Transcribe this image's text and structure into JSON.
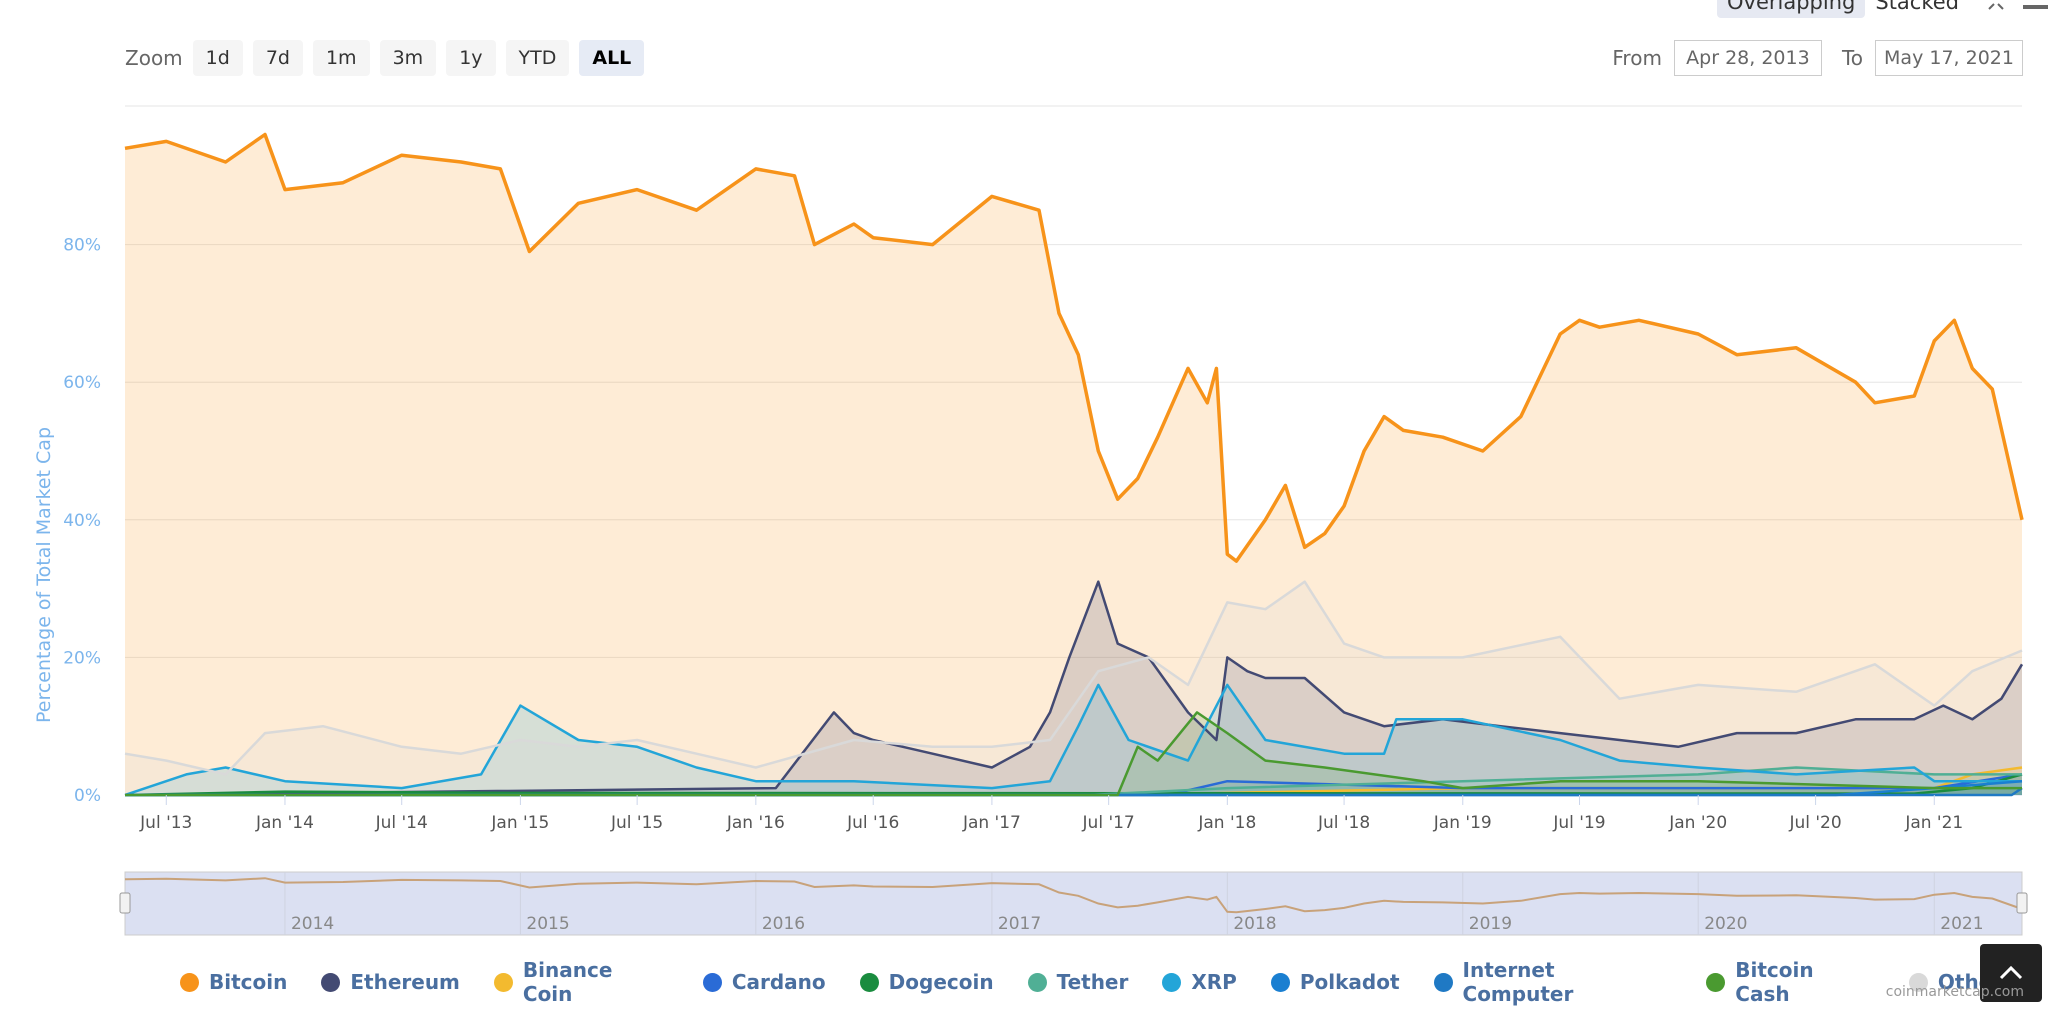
{
  "toolbar": {
    "mode_overlapping": "Overlapping",
    "mode_stacked": "Stacked",
    "zoom_label": "Zoom",
    "zoom_buttons": [
      "1d",
      "7d",
      "1m",
      "3m",
      "1y",
      "YTD",
      "ALL"
    ],
    "zoom_active": "ALL",
    "from_label": "From",
    "from_value": "Apr 28, 2013",
    "to_label": "To",
    "to_value": "May 17, 2021"
  },
  "credit": "coinmarketcap.com",
  "chart_data": {
    "type": "area",
    "ylabel": "Percentage of Total Market Cap",
    "y_ticks": [
      "0%",
      "20%",
      "40%",
      "60%",
      "80%"
    ],
    "ylim": [
      0,
      100
    ],
    "x_ticks": [
      "Jul '13",
      "Jan '14",
      "Jul '14",
      "Jan '15",
      "Jul '15",
      "Jan '16",
      "Jul '16",
      "Jan '17",
      "Jul '17",
      "Jan '18",
      "Jul '18",
      "Jan '19",
      "Jul '19",
      "Jan '20",
      "Jul '20",
      "Jan '21"
    ],
    "xlim": [
      "2013-04-28",
      "2021-05-17"
    ],
    "navigator_labels": [
      "2014",
      "2015",
      "2016",
      "2017",
      "2018",
      "2019",
      "2020",
      "2021"
    ],
    "grid": true,
    "legend_position": "bottom",
    "series": [
      {
        "name": "Bitcoin",
        "color": "#f7931a",
        "x": [
          "2013-04-28",
          "2013-07-01",
          "2013-10-01",
          "2013-12-01",
          "2014-01-01",
          "2014-04-01",
          "2014-07-01",
          "2014-10-01",
          "2014-12-01",
          "2015-01-15",
          "2015-04-01",
          "2015-07-01",
          "2015-10-01",
          "2016-01-01",
          "2016-03-01",
          "2016-04-01",
          "2016-06-01",
          "2016-07-01",
          "2016-10-01",
          "2017-01-01",
          "2017-03-15",
          "2017-04-15",
          "2017-05-15",
          "2017-06-15",
          "2017-07-15",
          "2017-08-15",
          "2017-09-15",
          "2017-11-01",
          "2017-12-01",
          "2017-12-15",
          "2018-01-01",
          "2018-01-15",
          "2018-03-01",
          "2018-04-01",
          "2018-05-01",
          "2018-06-01",
          "2018-07-01",
          "2018-08-01",
          "2018-09-01",
          "2018-10-01",
          "2018-12-01",
          "2019-02-01",
          "2019-04-01",
          "2019-06-01",
          "2019-07-01",
          "2019-08-01",
          "2019-10-01",
          "2020-01-01",
          "2020-03-01",
          "2020-06-01",
          "2020-09-01",
          "2020-10-01",
          "2020-12-01",
          "2021-01-01",
          "2021-02-01",
          "2021-03-01",
          "2021-04-01",
          "2021-05-17"
        ],
        "values": [
          94,
          95,
          92,
          96,
          88,
          89,
          93,
          92,
          91,
          79,
          86,
          88,
          85,
          91,
          90,
          80,
          83,
          81,
          80,
          87,
          85,
          70,
          64,
          50,
          43,
          46,
          52,
          62,
          57,
          62,
          35,
          34,
          40,
          45,
          36,
          38,
          42,
          50,
          55,
          53,
          52,
          50,
          55,
          67,
          69,
          68,
          69,
          67,
          64,
          65,
          60,
          57,
          58,
          66,
          69,
          62,
          59,
          40
        ]
      },
      {
        "name": "Ethereum",
        "color": "#434a73",
        "x": [
          "2013-04-28",
          "2016-02-01",
          "2016-05-01",
          "2016-06-01",
          "2016-07-01",
          "2016-10-01",
          "2017-01-01",
          "2017-03-01",
          "2017-04-01",
          "2017-05-01",
          "2017-06-15",
          "2017-07-15",
          "2017-09-01",
          "2017-11-01",
          "2017-12-15",
          "2018-01-01",
          "2018-02-01",
          "2018-03-01",
          "2018-05-01",
          "2018-07-01",
          "2018-09-01",
          "2018-12-01",
          "2019-03-01",
          "2019-06-01",
          "2019-09-01",
          "2019-12-01",
          "2020-03-01",
          "2020-06-01",
          "2020-09-01",
          "2020-12-01",
          "2021-01-15",
          "2021-03-01",
          "2021-04-15",
          "2021-05-17"
        ],
        "values": [
          0,
          1,
          12,
          9,
          8,
          6,
          4,
          7,
          12,
          20,
          31,
          22,
          20,
          12,
          8,
          20,
          18,
          17,
          17,
          12,
          10,
          11,
          10,
          9,
          8,
          7,
          9,
          9,
          11,
          11,
          13,
          11,
          14,
          19
        ]
      },
      {
        "name": "Binance Coin",
        "color": "#f3ba2f",
        "x": [
          "2013-04-28",
          "2017-08-01",
          "2019-01-01",
          "2020-01-01",
          "2021-01-01",
          "2021-03-01",
          "2021-05-17"
        ],
        "values": [
          0,
          0,
          1,
          1,
          1,
          3,
          4
        ]
      },
      {
        "name": "Cardano",
        "color": "#2a6bd6",
        "x": [
          "2013-04-28",
          "2017-10-01",
          "2018-01-01",
          "2019-01-01",
          "2021-01-01",
          "2021-05-17"
        ],
        "values": [
          0,
          0,
          2,
          1,
          1,
          3
        ]
      },
      {
        "name": "Dogecoin",
        "color": "#1a8c3f",
        "x": [
          "2013-04-28",
          "2014-01-01",
          "2015-01-01",
          "2020-12-01",
          "2021-03-01",
          "2021-05-17"
        ],
        "values": [
          0,
          0.5,
          0.3,
          0.2,
          1,
          3
        ]
      },
      {
        "name": "Tether",
        "color": "#50af95",
        "x": [
          "2013-04-28",
          "2017-06-01",
          "2018-01-01",
          "2019-01-01",
          "2020-01-01",
          "2020-06-01",
          "2021-01-01",
          "2021-05-17"
        ],
        "values": [
          0,
          0,
          1,
          2,
          3,
          4,
          3,
          3
        ]
      },
      {
        "name": "XRP",
        "color": "#23a5d8",
        "x": [
          "2013-04-28",
          "2013-08-01",
          "2013-10-01",
          "2014-01-01",
          "2014-07-01",
          "2014-11-01",
          "2015-01-01",
          "2015-04-01",
          "2015-07-01",
          "2015-10-01",
          "2016-01-01",
          "2016-06-01",
          "2017-01-01",
          "2017-04-01",
          "2017-05-15",
          "2017-06-15",
          "2017-08-01",
          "2017-11-01",
          "2018-01-01",
          "2018-03-01",
          "2018-07-01",
          "2018-09-01",
          "2018-09-20",
          "2019-01-01",
          "2019-06-01",
          "2019-09-01",
          "2020-01-01",
          "2020-06-01",
          "2020-12-01",
          "2021-01-01",
          "2021-05-17"
        ],
        "values": [
          0,
          3,
          4,
          2,
          1,
          3,
          13,
          8,
          7,
          4,
          2,
          2,
          1,
          2,
          10,
          16,
          8,
          5,
          16,
          8,
          6,
          6,
          11,
          11,
          8,
          5,
          4,
          3,
          4,
          2,
          2
        ]
      },
      {
        "name": "Polkadot",
        "color": "#1a7fd1",
        "x": [
          "2013-04-28",
          "2020-08-01",
          "2021-01-01",
          "2021-05-17"
        ],
        "values": [
          0,
          0,
          1,
          2
        ]
      },
      {
        "name": "Internet Computer",
        "color": "#1f79c4",
        "x": [
          "2013-04-28",
          "2021-05-01",
          "2021-05-17"
        ],
        "values": [
          0,
          0,
          1
        ]
      },
      {
        "name": "Bitcoin Cash",
        "color": "#4a9a30",
        "x": [
          "2013-04-28",
          "2017-07-15",
          "2017-08-15",
          "2017-09-15",
          "2017-11-15",
          "2018-01-01",
          "2018-03-01",
          "2018-06-01",
          "2018-11-01",
          "2019-01-01",
          "2019-06-01",
          "2020-01-01",
          "2021-01-01",
          "2021-05-17"
        ],
        "values": [
          0,
          0,
          7,
          5,
          12,
          9,
          5,
          4,
          2,
          1,
          2,
          2,
          1,
          1
        ]
      },
      {
        "name": "Others",
        "color": "#d9d9d9",
        "x": [
          "2013-04-28",
          "2013-07-01",
          "2013-10-01",
          "2013-12-01",
          "2014-03-01",
          "2014-07-01",
          "2014-10-01",
          "2015-01-01",
          "2015-04-01",
          "2015-07-01",
          "2015-10-01",
          "2016-01-01",
          "2016-06-01",
          "2016-10-01",
          "2017-01-01",
          "2017-04-01",
          "2017-06-15",
          "2017-09-01",
          "2017-11-01",
          "2018-01-01",
          "2018-03-01",
          "2018-05-01",
          "2018-07-01",
          "2018-09-01",
          "2019-01-01",
          "2019-06-01",
          "2019-09-01",
          "2020-01-01",
          "2020-06-01",
          "2020-10-01",
          "2020-12-01",
          "2021-01-01",
          "2021-03-01",
          "2021-05-17"
        ],
        "values": [
          6,
          5,
          3,
          9,
          10,
          7,
          6,
          8,
          7,
          8,
          6,
          4,
          8,
          7,
          7,
          8,
          18,
          20,
          16,
          28,
          27,
          31,
          22,
          20,
          20,
          23,
          14,
          16,
          15,
          19,
          15,
          13,
          18,
          21
        ]
      }
    ]
  }
}
